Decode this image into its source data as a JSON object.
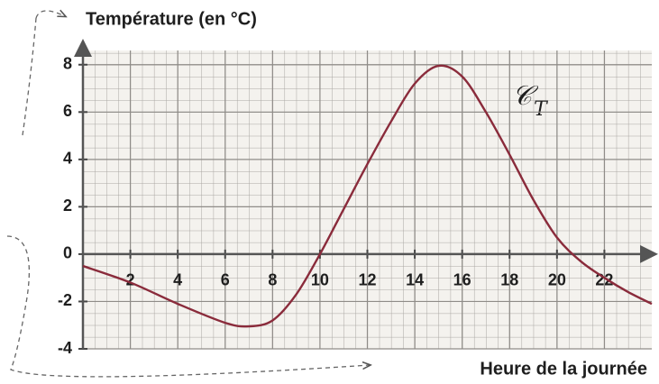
{
  "chart_data": {
    "type": "line",
    "title": "Température (en °C)",
    "x_label": "Heure de la journée",
    "curve_label": "𝒞",
    "curve_label_sub": "T",
    "x": [
      0,
      2,
      4,
      6,
      7,
      8,
      9,
      10,
      11,
      12,
      13,
      14,
      15,
      16,
      17,
      18,
      19,
      20,
      21,
      22,
      23,
      24
    ],
    "series": [
      {
        "color": "#8a2b3b",
        "values": [
          -0.5,
          -1.2,
          -2.1,
          -2.9,
          -3.05,
          -2.8,
          -1.7,
          0,
          1.9,
          3.8,
          5.6,
          7.2,
          7.95,
          7.5,
          6.0,
          4.2,
          2.3,
          0.7,
          -0.3,
          -1.0,
          -1.6,
          -2.1
        ]
      }
    ],
    "xlim": [
      0,
      24
    ],
    "ylim": [
      -4,
      8.6
    ],
    "xticks": [
      2,
      4,
      6,
      8,
      10,
      12,
      14,
      16,
      18,
      20,
      22
    ],
    "yticks": [
      -4,
      -2,
      0,
      2,
      4,
      6,
      8
    ],
    "grid": true
  }
}
